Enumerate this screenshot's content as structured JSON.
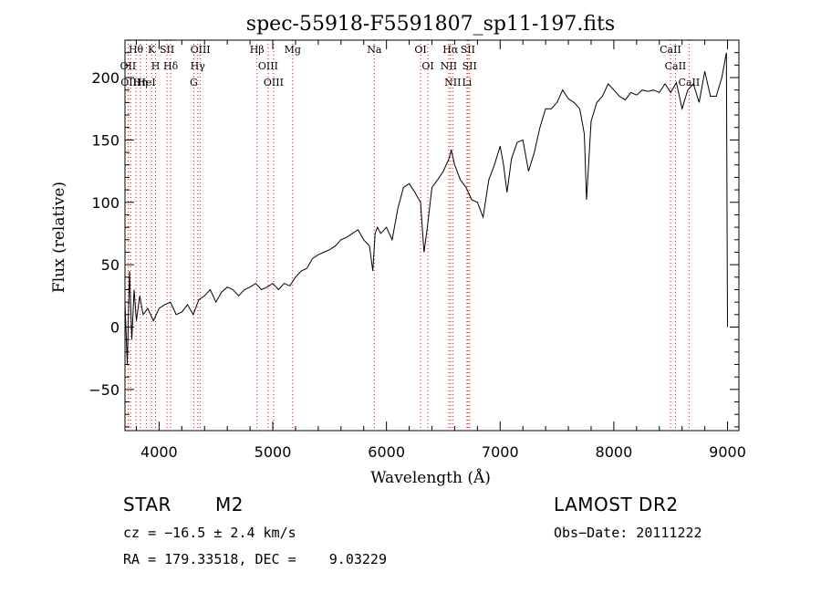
{
  "chart_data": {
    "type": "line",
    "title": "spec-55918-F5591807_sp11-197.fits",
    "xlabel": "Wavelength (Å)",
    "ylabel": "Flux (relative)",
    "xlim": [
      3700,
      9100
    ],
    "ylim": [
      -83,
      230
    ],
    "xticks": [
      4000,
      5000,
      6000,
      7000,
      8000,
      9000
    ],
    "yticks": [
      -50,
      0,
      50,
      100,
      150,
      200
    ],
    "grid": false,
    "line_color": "#000000",
    "marker_color": "#ff0000",
    "series": [
      {
        "x": [
          3700,
          3720,
          3740,
          3760,
          3780,
          3800,
          3830,
          3860,
          3900,
          3950,
          4000,
          4050,
          4100,
          4150,
          4200,
          4250,
          4300,
          4350,
          4400,
          4450,
          4500,
          4550,
          4600,
          4650,
          4700,
          4750,
          4800,
          4850,
          4900,
          4950,
          5000,
          5050,
          5100,
          5150,
          5200,
          5250,
          5300,
          5350,
          5400,
          5450,
          5500,
          5550,
          5600,
          5650,
          5700,
          5750,
          5800,
          5850,
          5880,
          5900,
          5920,
          5950,
          6000,
          6050,
          6100,
          6150,
          6200,
          6250,
          6300,
          6330,
          6360,
          6400,
          6450,
          6500,
          6550,
          6570,
          6600,
          6650,
          6700,
          6750,
          6800,
          6850,
          6900,
          6950,
          7000,
          7030,
          7060,
          7100,
          7150,
          7200,
          7250,
          7300,
          7350,
          7400,
          7450,
          7500,
          7550,
          7600,
          7650,
          7700,
          7740,
          7760,
          7800,
          7850,
          7900,
          7950,
          8000,
          8050,
          8100,
          8150,
          8200,
          8250,
          8300,
          8350,
          8400,
          8450,
          8500,
          8550,
          8600,
          8650,
          8700,
          8750,
          8800,
          8850,
          8900,
          8950,
          8990,
          9000
        ],
        "y": [
          20,
          -30,
          45,
          -10,
          30,
          5,
          25,
          10,
          15,
          5,
          15,
          18,
          20,
          10,
          12,
          18,
          10,
          22,
          25,
          30,
          20,
          28,
          32,
          30,
          25,
          30,
          32,
          35,
          30,
          32,
          35,
          30,
          35,
          33,
          40,
          45,
          47,
          55,
          58,
          60,
          62,
          65,
          70,
          72,
          75,
          78,
          70,
          65,
          45,
          75,
          80,
          75,
          80,
          70,
          95,
          112,
          115,
          108,
          100,
          60,
          80,
          112,
          118,
          125,
          135,
          142,
          130,
          118,
          112,
          102,
          100,
          88,
          118,
          130,
          145,
          130,
          108,
          135,
          148,
          150,
          125,
          140,
          160,
          175,
          175,
          180,
          190,
          183,
          180,
          175,
          155,
          102,
          165,
          180,
          185,
          195,
          190,
          185,
          182,
          188,
          186,
          190,
          189,
          190,
          188,
          195,
          188,
          196,
          175,
          190,
          195,
          180,
          205,
          185,
          185,
          200,
          220,
          0
        ]
      }
    ],
    "lines": [
      {
        "name": "Hθ",
        "x": 3797
      },
      {
        "name": "OII",
        "x": 3727
      },
      {
        "name": "OIII",
        "x": 3750
      },
      {
        "name": "K",
        "x": 3934
      },
      {
        "name": "H",
        "x": 3969
      },
      {
        "name": "Hη",
        "x": 3835
      },
      {
        "name": "HeI",
        "x": 3889
      },
      {
        "name": "SII",
        "x": 4070
      },
      {
        "name": "Hδ",
        "x": 4102
      },
      {
        "name": "OIII",
        "x": 4363
      },
      {
        "name": "Hγ",
        "x": 4340
      },
      {
        "name": "G",
        "x": 4305
      },
      {
        "name": "Hβ",
        "x": 4861
      },
      {
        "name": "OIII",
        "x": 4959
      },
      {
        "name": "OIII",
        "x": 5007
      },
      {
        "name": "Mg",
        "x": 5175
      },
      {
        "name": "Na",
        "x": 5893
      },
      {
        "name": "OI",
        "x": 6300
      },
      {
        "name": "OI",
        "x": 6364
      },
      {
        "name": "Hα",
        "x": 6563
      },
      {
        "name": "NII",
        "x": 6548
      },
      {
        "name": "NII",
        "x": 6583
      },
      {
        "name": "SII",
        "x": 6716
      },
      {
        "name": "SII",
        "x": 6731
      },
      {
        "name": "Li",
        "x": 6708
      },
      {
        "name": "CaII",
        "x": 8498
      },
      {
        "name": "CaII",
        "x": 8542
      },
      {
        "name": "CaII",
        "x": 8662
      }
    ]
  },
  "info": {
    "object_type": "STAR",
    "subclass": "M2",
    "survey": "LAMOST DR2",
    "cz": "cz = −16.5 ± 2.4 km/s",
    "obs_date": "Obs−Date: 20111222",
    "coords": "RA = 179.33518, DEC =    9.03229"
  }
}
